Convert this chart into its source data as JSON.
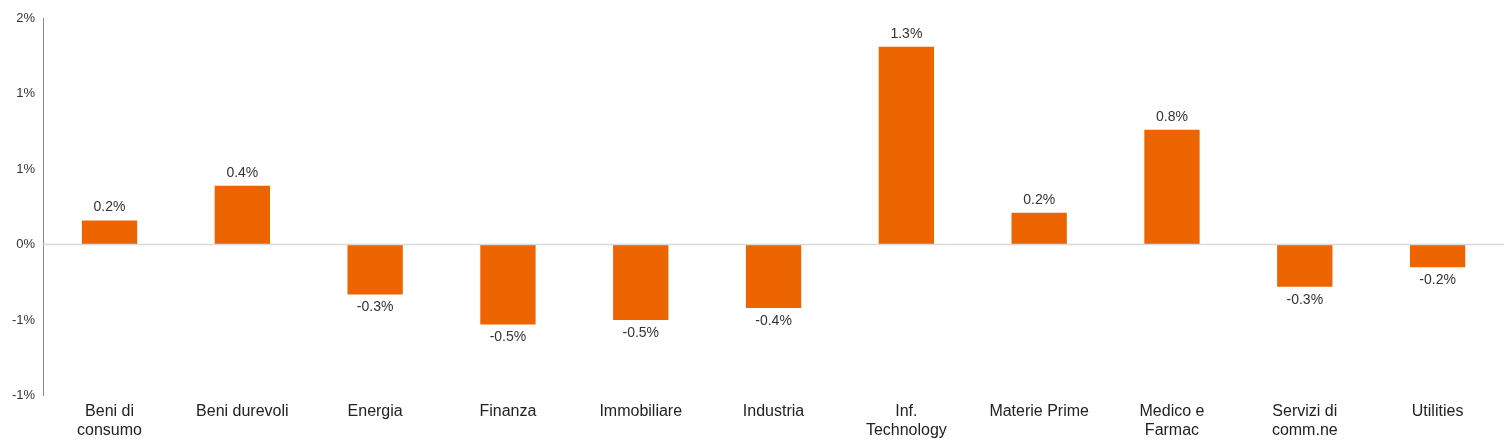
{
  "chart_data": {
    "type": "bar",
    "categories": [
      "Beni di consumo",
      "Beni durevoli",
      "Energia",
      "Finanza",
      "Immobiliare",
      "Industria",
      "Inf. Technology",
      "Materie Prime",
      "Medico e Farmac",
      "Servizi di comm.ne",
      "Utilities"
    ],
    "values": [
      0.16,
      0.39,
      -0.33,
      -0.53,
      -0.5,
      -0.42,
      1.31,
      0.21,
      0.76,
      -0.28,
      -0.15
    ],
    "value_labels": [
      "0.2%",
      "0.4%",
      "-0.3%",
      "-0.5%",
      "-0.5%",
      "-0.4%",
      "1.3%",
      "0.2%",
      "0.8%",
      "-0.3%",
      "-0.2%"
    ],
    "color": "#ec6500",
    "ylim": [
      -1,
      1.5
    ],
    "yticks": [
      {
        "value": -1,
        "label": "-1%"
      },
      {
        "value": -0.5,
        "label": "-1%"
      },
      {
        "value": 0,
        "label": "0%"
      },
      {
        "value": 0.5,
        "label": "1%"
      },
      {
        "value": 1,
        "label": "1%"
      },
      {
        "value": 1.5,
        "label": "2%"
      }
    ],
    "ref_lines": [
      {
        "axis": "y",
        "value": 0,
        "color": "#d9d9d9"
      }
    ],
    "grid": false,
    "legend": false
  }
}
